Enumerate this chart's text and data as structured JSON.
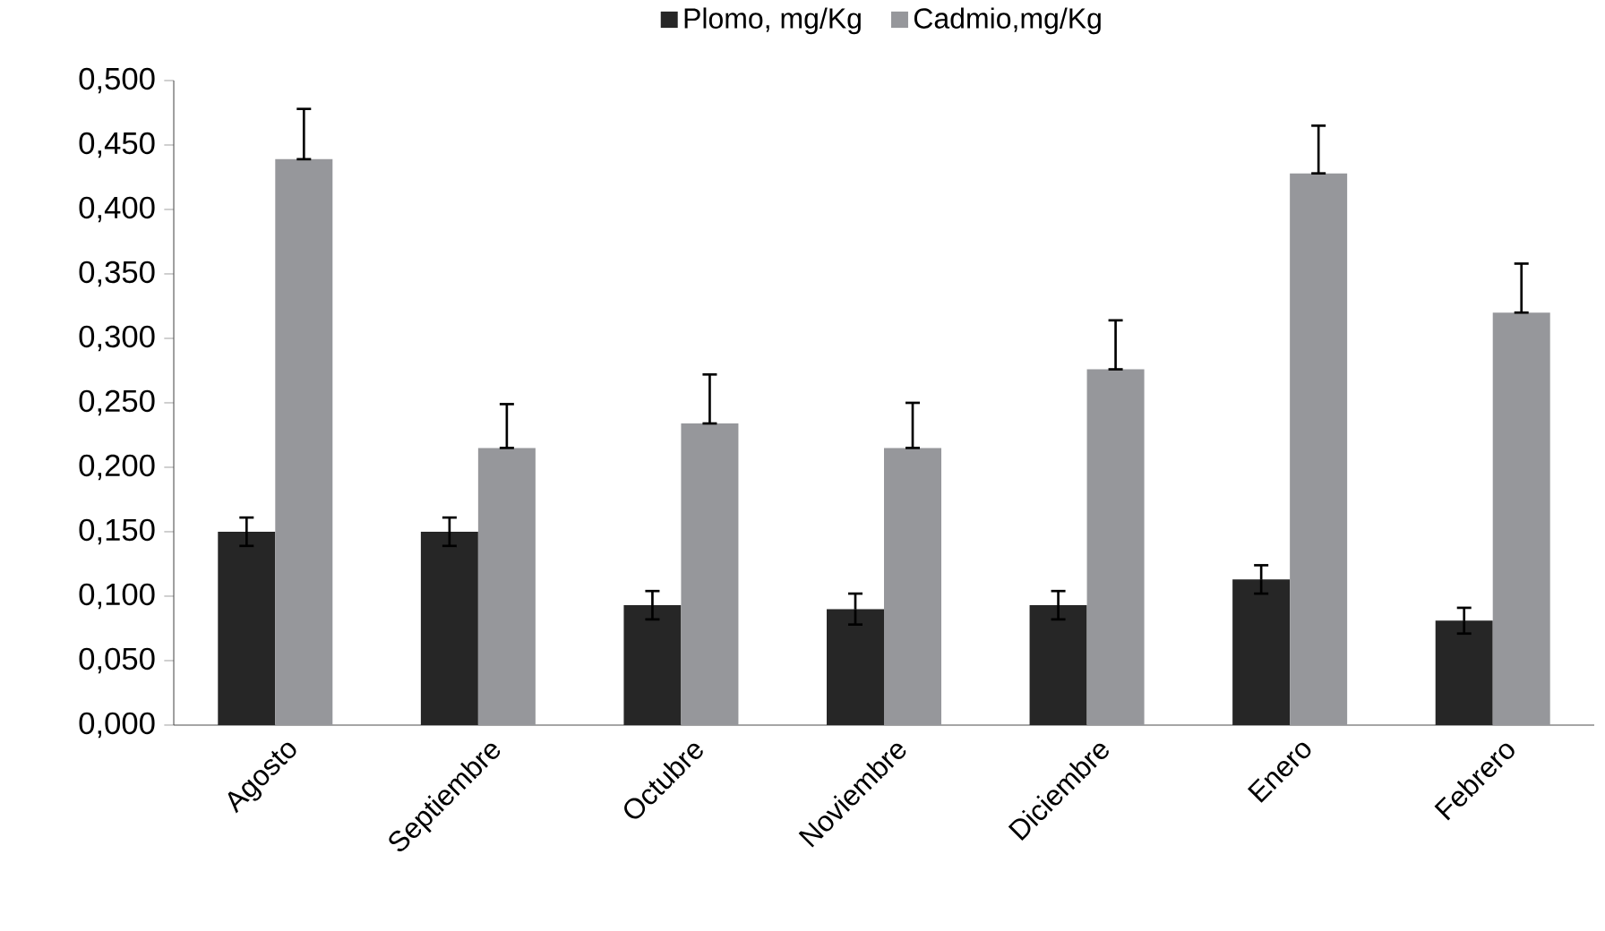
{
  "chart_data": {
    "type": "bar",
    "categories": [
      "Agosto",
      "Septiembre",
      "Octubre",
      "Noviembre",
      "Diciembre",
      "Enero",
      "Febrero"
    ],
    "series": [
      {
        "name": "Plomo, mg/Kg",
        "color": "#262626",
        "values": [
          0.15,
          0.15,
          0.093,
          0.09,
          0.093,
          0.113,
          0.081
        ],
        "errors": [
          0.011,
          0.011,
          0.011,
          0.012,
          0.011,
          0.011,
          0.01
        ]
      },
      {
        "name": "Cadmio,mg/Kg",
        "color": "#96979b",
        "values": [
          0.439,
          0.215,
          0.234,
          0.215,
          0.276,
          0.428,
          0.32
        ],
        "errors": [
          [
            0.439,
            0.478
          ],
          [
            0.215,
            0.249
          ],
          [
            0.234,
            0.272
          ],
          [
            0.215,
            0.25
          ],
          [
            0.276,
            0.314
          ],
          [
            0.428,
            0.465
          ],
          [
            0.32,
            0.358
          ]
        ]
      }
    ],
    "ylim": [
      0,
      0.5
    ],
    "yticks": [
      {
        "value": 0,
        "label": "0,000"
      },
      {
        "value": 0.05,
        "label": "0,050"
      },
      {
        "value": 0.1,
        "label": "0,100"
      },
      {
        "value": 0.15,
        "label": "0,150"
      },
      {
        "value": 0.2,
        "label": "0,200"
      },
      {
        "value": 0.25,
        "label": "0,250"
      },
      {
        "value": 0.3,
        "label": "0,300"
      },
      {
        "value": 0.35,
        "label": "0,350"
      },
      {
        "value": 0.4,
        "label": "0,400"
      },
      {
        "value": 0.45,
        "label": "0,450"
      },
      {
        "value": 0.5,
        "label": "0,500"
      }
    ],
    "grid": false,
    "legend": "top"
  }
}
